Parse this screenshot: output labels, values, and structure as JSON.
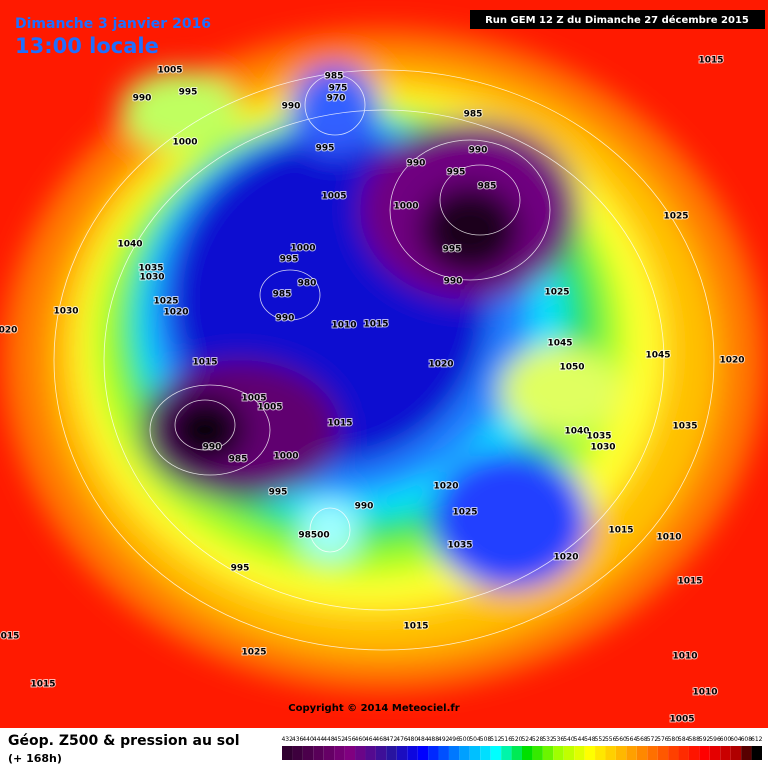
{
  "header": {
    "date": "Dimanche 3 janvier 2016",
    "time": "13:00 locale",
    "run": "Run GEM 12 Z du Dimanche 27 décembre 2015"
  },
  "map": {
    "isobar_labels": [
      "1005",
      "990",
      "995",
      "1000",
      "985",
      "975",
      "970",
      "990",
      "995",
      "985",
      "990",
      "995",
      "990",
      "985",
      "1000",
      "995",
      "990",
      "1015",
      "1025",
      "1005",
      "1040",
      "1035",
      "1030",
      "1025",
      "1020",
      "1030",
      "020",
      "1000",
      "995",
      "980",
      "985",
      "990",
      "1010",
      "1015",
      "1025",
      "1045",
      "1045",
      "1050",
      "1020",
      "1020",
      "1015",
      "1005",
      "1005",
      "990",
      "985",
      "1000",
      "1015",
      "1040",
      "1035",
      "1030",
      "1035",
      "995",
      "990",
      "1020",
      "1025",
      "98500",
      "1035",
      "1020",
      "1015",
      "1010",
      "995",
      "1015",
      "015",
      "1025",
      "1015",
      "1010",
      "1015",
      "1010",
      "1005"
    ],
    "copyright": "Copyright © 2014 Meteociel.fr"
  },
  "legend": {
    "title": "Géop. Z500 & pression au sol",
    "subtitle": "(+ 168h)",
    "scale": [
      432,
      436,
      440,
      444,
      448,
      452,
      456,
      460,
      464,
      468,
      472,
      476,
      480,
      484,
      488,
      492,
      496,
      500,
      504,
      508,
      512,
      516,
      520,
      524,
      528,
      532,
      536,
      540,
      544,
      548,
      552,
      556,
      560,
      564,
      568,
      572,
      576,
      580,
      584,
      588,
      592,
      596,
      600,
      604,
      608,
      612
    ]
  }
}
